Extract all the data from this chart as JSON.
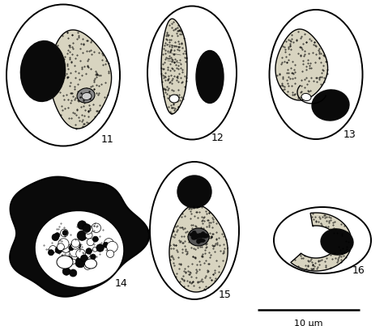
{
  "background_color": "#ffffff",
  "scale_bar_label": "10 μm",
  "light_fill": "#d8d4c0",
  "black_fill": "#0a0a0a",
  "white_fill": "#ffffff"
}
